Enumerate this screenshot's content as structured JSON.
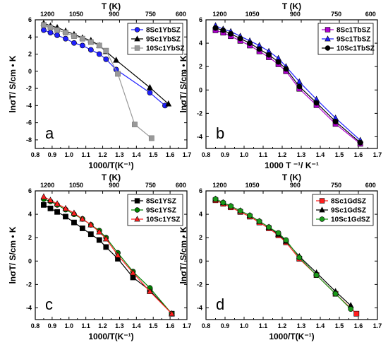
{
  "chart_data": [
    {
      "type": "line",
      "panel": "a",
      "xlabel": "1000/T(K⁻¹)",
      "ylabel": "lnσT/ S/cm • K",
      "top_xlabel": "T (K)",
      "top_ticks": [
        "1200",
        "1050",
        "900",
        "750",
        "600"
      ],
      "xlim": [
        0.8,
        1.7
      ],
      "ylim": [
        -9,
        6
      ],
      "xticks": [
        "0.8",
        "0.9",
        "1.0",
        "1.1",
        "1.2",
        "1.3",
        "1.4",
        "1.5",
        "1.6",
        "1.7"
      ],
      "yticks": [
        "-8",
        "-6",
        "-4",
        "-2",
        "0",
        "2",
        "4",
        "6"
      ],
      "legend_position": "top-right",
      "series": [
        {
          "name": "8Sc1YbSZ",
          "color": "#1f1fff",
          "marker": "circle",
          "x": [
            0.85,
            0.89,
            0.93,
            0.98,
            1.03,
            1.08,
            1.13,
            1.18,
            1.22,
            1.28,
            1.48,
            1.57
          ],
          "y": [
            4.8,
            4.5,
            4.2,
            3.8,
            3.3,
            3.0,
            2.5,
            2.0,
            1.4,
            0.2,
            -2.5,
            -4.0
          ]
        },
        {
          "name": "9Sc1YbSZ",
          "color": "#000000",
          "marker": "triangle",
          "x": [
            0.85,
            0.89,
            0.93,
            0.98,
            1.03,
            1.08,
            1.13,
            1.18,
            1.22,
            1.28,
            1.48,
            1.59
          ],
          "y": [
            5.6,
            5.3,
            5.1,
            4.7,
            4.3,
            3.9,
            3.6,
            3.0,
            2.3,
            1.3,
            -1.9,
            -3.8
          ]
        },
        {
          "name": "10Sc1YbSZ",
          "color": "#999999",
          "marker": "square",
          "x": [
            0.85,
            0.89,
            0.93,
            0.98,
            1.03,
            1.08,
            1.13,
            1.18,
            1.22,
            1.29,
            1.39,
            1.49
          ],
          "y": [
            5.4,
            5.1,
            4.8,
            4.5,
            4.1,
            3.8,
            3.4,
            3.0,
            2.4,
            -0.3,
            -6.2,
            -7.8
          ]
        }
      ]
    },
    {
      "type": "line",
      "panel": "b",
      "xlabel": "1000 T ⁻¹/ K⁻¹",
      "ylabel": "lnσT/ S/cm • K",
      "top_xlabel": "T (K)",
      "top_ticks": [
        "1200",
        "1050",
        "900",
        "750",
        "600"
      ],
      "xlim": [
        0.8,
        1.7
      ],
      "ylim": [
        -5,
        6
      ],
      "xticks": [
        "0.8",
        "0.9",
        "1.0",
        "1.1",
        "1.2",
        "1.3",
        "1.4",
        "1.5",
        "1.6",
        "1.7"
      ],
      "yticks": [
        "-4",
        "-2",
        "0",
        "2",
        "4",
        "6"
      ],
      "legend_position": "top-right",
      "series": [
        {
          "name": "8Sc1TbSZ",
          "color": "#b000d0",
          "marker": "square",
          "x": [
            0.85,
            0.89,
            0.93,
            0.98,
            1.03,
            1.08,
            1.13,
            1.18,
            1.22,
            1.29,
            1.38,
            1.48,
            1.61
          ],
          "y": [
            5.1,
            4.9,
            4.6,
            4.2,
            3.8,
            3.3,
            2.8,
            2.2,
            1.6,
            0.1,
            -1.3,
            -2.9,
            -4.6
          ]
        },
        {
          "name": "9Sc1TbSZ",
          "color": "#1f1fff",
          "marker": "triangle",
          "x": [
            0.85,
            0.89,
            0.93,
            0.98,
            1.03,
            1.08,
            1.13,
            1.18,
            1.22,
            1.29,
            1.38,
            1.48,
            1.61
          ],
          "y": [
            5.5,
            5.2,
            5.0,
            4.6,
            4.2,
            3.8,
            3.3,
            2.7,
            2.0,
            0.7,
            -0.8,
            -2.4,
            -4.3
          ]
        },
        {
          "name": "10Sc1TbSZ",
          "color": "#000000",
          "marker": "circle",
          "x": [
            0.85,
            0.89,
            0.93,
            0.98,
            1.03,
            1.08,
            1.13,
            1.18,
            1.22,
            1.29,
            1.38,
            1.48,
            1.61
          ],
          "y": [
            5.3,
            5.1,
            4.8,
            4.4,
            4.0,
            3.5,
            3.0,
            2.4,
            1.8,
            0.3,
            -1.1,
            -2.7,
            -4.5
          ]
        }
      ]
    },
    {
      "type": "line",
      "panel": "c",
      "xlabel": "1000/T(K⁻¹)",
      "ylabel": "lnσT/ S/cm • K",
      "top_xlabel": "T (K)",
      "top_ticks": [
        "1200",
        "1050",
        "900",
        "750",
        "600"
      ],
      "xlim": [
        0.8,
        1.7
      ],
      "ylim": [
        -5,
        6
      ],
      "xticks": [
        "0.8",
        "0.9",
        "1.0",
        "1.1",
        "1.2",
        "1.3",
        "1.4",
        "1.5",
        "1.6",
        "1.7"
      ],
      "yticks": [
        "-4",
        "-2",
        "0",
        "2",
        "4",
        "6"
      ],
      "legend_position": "top-right",
      "series": [
        {
          "name": "8Sc1YSZ",
          "color": "#000000",
          "marker": "square",
          "x": [
            0.85,
            0.89,
            0.93,
            0.98,
            1.03,
            1.08,
            1.13,
            1.18,
            1.22,
            1.29,
            1.38,
            1.48,
            1.61
          ],
          "y": [
            4.8,
            4.5,
            4.2,
            3.8,
            3.3,
            2.8,
            2.3,
            1.8,
            1.2,
            0.2,
            -1.4,
            -2.5,
            -4.5
          ]
        },
        {
          "name": "9Sc1YSZ",
          "color": "#008000",
          "marker": "circle",
          "x": [
            0.85,
            0.89,
            0.93,
            0.98,
            1.03,
            1.08,
            1.13,
            1.18,
            1.22,
            1.29,
            1.38,
            1.48,
            1.61
          ],
          "y": [
            5.3,
            5.1,
            4.8,
            4.4,
            4.0,
            3.6,
            3.1,
            2.6,
            2.0,
            0.7,
            -0.9,
            -2.3,
            -4.5
          ]
        },
        {
          "name": "10Sc1YSZ",
          "color": "#ff1f1f",
          "marker": "triangle",
          "x": [
            0.85,
            0.89,
            0.93,
            0.98,
            1.03,
            1.08,
            1.13,
            1.18,
            1.22,
            1.29,
            1.38,
            1.48,
            1.61
          ],
          "y": [
            5.5,
            5.2,
            4.9,
            4.5,
            4.1,
            3.6,
            3.1,
            2.5,
            1.9,
            0.5,
            -1.0,
            -2.6,
            -4.5
          ]
        }
      ]
    },
    {
      "type": "line",
      "panel": "d",
      "xlabel": "1000/T(K⁻¹)",
      "ylabel": "lnσT/ S/cm • K",
      "top_xlabel": "T (K)",
      "top_ticks": [
        "1200",
        "1050",
        "900",
        "750",
        "600"
      ],
      "xlim": [
        0.8,
        1.7
      ],
      "ylim": [
        -5,
        6
      ],
      "xticks": [
        "0.8",
        "0.9",
        "1.0",
        "1.1",
        "1.2",
        "1.3",
        "1.4",
        "1.5",
        "1.6",
        "1.7"
      ],
      "yticks": [
        "-4",
        "-2",
        "0",
        "2",
        "4",
        "6"
      ],
      "legend_position": "top-right",
      "series": [
        {
          "name": "8Sc1GdSZ",
          "color": "#ff1f1f",
          "marker": "square",
          "x": [
            0.85,
            0.89,
            0.93,
            0.98,
            1.03,
            1.08,
            1.13,
            1.18,
            1.22,
            1.29,
            1.38,
            1.48,
            1.59
          ],
          "y": [
            5.2,
            4.9,
            4.6,
            4.2,
            3.8,
            3.3,
            2.8,
            2.2,
            1.6,
            0.2,
            -1.2,
            -2.8,
            -4.5
          ]
        },
        {
          "name": "9Sc1GdSZ",
          "color": "#000000",
          "marker": "triangle",
          "x": [
            0.85,
            0.89,
            0.93,
            0.98,
            1.03,
            1.08,
            1.13,
            1.18,
            1.22,
            1.29,
            1.38,
            1.48,
            1.56
          ],
          "y": [
            5.3,
            5.0,
            4.7,
            4.3,
            3.9,
            3.4,
            2.9,
            2.3,
            1.7,
            0.4,
            -1.0,
            -2.6,
            -3.8
          ]
        },
        {
          "name": "10Sc1GdSZ",
          "color": "#1a9a1a",
          "marker": "circle",
          "x": [
            0.85,
            0.89,
            0.93,
            0.98,
            1.03,
            1.08,
            1.13,
            1.18,
            1.22,
            1.29,
            1.38,
            1.48,
            1.56
          ],
          "y": [
            5.3,
            5.0,
            4.7,
            4.3,
            3.9,
            3.4,
            2.9,
            2.4,
            1.8,
            0.3,
            -1.2,
            -2.8,
            -4.1
          ]
        }
      ]
    }
  ]
}
